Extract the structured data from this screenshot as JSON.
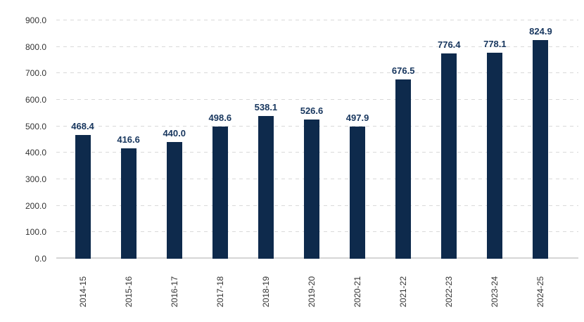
{
  "chart_data": {
    "type": "bar",
    "title": "",
    "xlabel": "",
    "ylabel": "",
    "categories": [
      "2014-15",
      "2015-16",
      "2016-17",
      "2017-18",
      "2018-19",
      "2019-20",
      "2020-21",
      "2021-22",
      "2022-23",
      "2023-24",
      "2024-25"
    ],
    "values": [
      468.4,
      416.6,
      440.0,
      498.6,
      538.1,
      526.6,
      497.9,
      676.5,
      776.4,
      778.1,
      824.9
    ],
    "value_labels": [
      "468.4",
      "416.6",
      "440.0",
      "498.6",
      "538.1",
      "526.6",
      "497.9",
      "676.5",
      "776.4",
      "778.1",
      "824.9"
    ],
    "ylim": [
      0,
      900
    ],
    "ytick_step": 100,
    "ytick_labels": [
      "0.0",
      "100.0",
      "200.0",
      "300.0",
      "400.0",
      "500.0",
      "600.0",
      "700.0",
      "800.0",
      "900.0"
    ],
    "grid": "horizontal-dashed",
    "legend": "none",
    "colors": {
      "bar": "#0E2A4C",
      "value_label": "#17365E",
      "axis_text": "#333333",
      "gridline": "#D9D9D9",
      "baseline": "#D6D6D6",
      "background": "#FFFFFF"
    }
  }
}
